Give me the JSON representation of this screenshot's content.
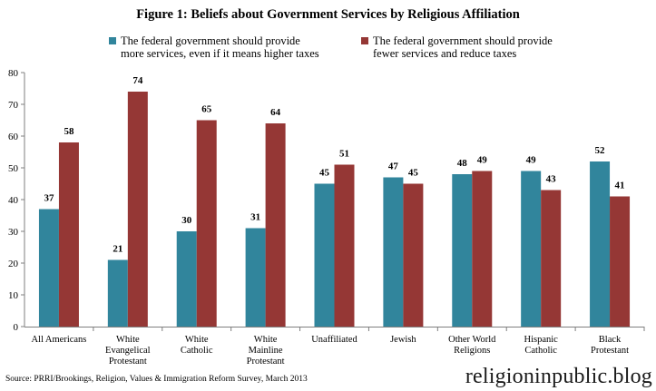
{
  "colors": {
    "series1": "#31859c",
    "series2": "#953735",
    "axis": "#7f7f7f",
    "text": "#000000"
  },
  "source": "Source: PRRI/Brookings, Religion, Values & Immigration Reform Survey, March 2013",
  "watermark": "religioninpublic.blog",
  "chart_data": {
    "type": "bar",
    "title": "Figure 1: Beliefs about Government Services by Religious Affiliation",
    "xlabel": "",
    "ylabel": "",
    "ylim": [
      0,
      80
    ],
    "yticks": [
      0,
      10,
      20,
      30,
      40,
      50,
      60,
      70,
      80
    ],
    "grid": false,
    "legend_position": "top",
    "categories": [
      [
        "All Americans"
      ],
      [
        "White",
        "Evangelical",
        "Protestant"
      ],
      [
        "White",
        "Catholic"
      ],
      [
        "White",
        "Mainline",
        "Protestant"
      ],
      [
        "Unaffiliated"
      ],
      [
        "Jewish"
      ],
      [
        "Other World",
        "Religions"
      ],
      [
        "Hispanic",
        "Catholic"
      ],
      [
        "Black",
        "Protestant"
      ]
    ],
    "series": [
      {
        "name": "The federal government should provide more services, even if it means higher taxes",
        "values": [
          37,
          21,
          30,
          31,
          45,
          47,
          48,
          49,
          52
        ]
      },
      {
        "name": "The federal government should provide fewer services and reduce taxes",
        "values": [
          58,
          74,
          65,
          64,
          51,
          45,
          49,
          43,
          41
        ]
      }
    ]
  }
}
